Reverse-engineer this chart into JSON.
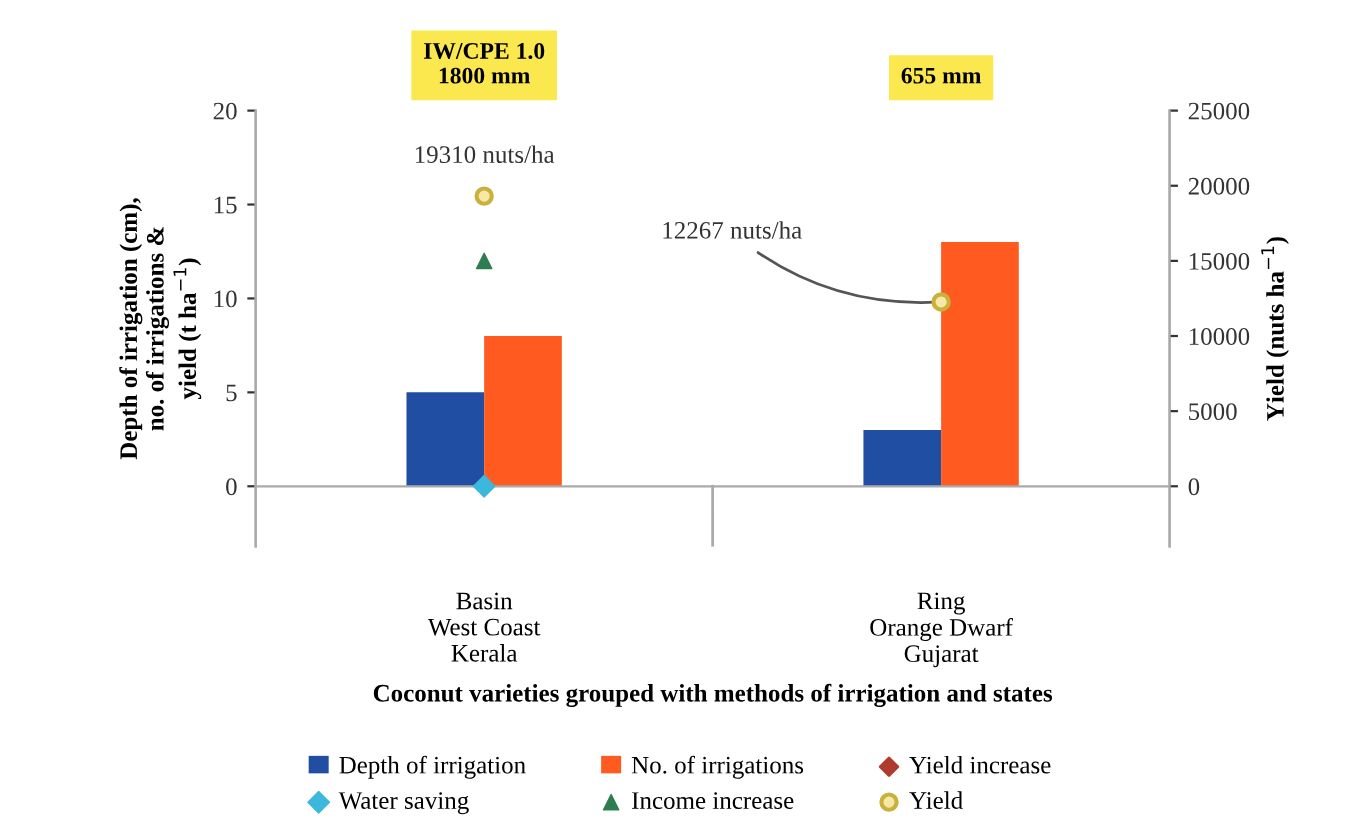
{
  "chart_data": {
    "type": "bar",
    "categories": [
      "Basin\nWest Coast\nKerala",
      "Ring\nOrange Dwarf\nGujarat"
    ],
    "xlabel": "Coconut varieties grouped with methods of irrigation and states",
    "ylabel": "Depth of irrigation (cm),\nno. of irrigations &\nyield (t ha$^{−1}$)",
    "y2label": "Yield (nuts ha$^{−1}$)",
    "ylim": [
      -3.2,
      20
    ],
    "yticks": [
      0,
      5,
      10,
      15,
      20
    ],
    "y2lim": [
      -4000,
      25000
    ],
    "y2ticks": [
      0,
      5000,
      10000,
      15000,
      20000,
      25000
    ],
    "series": [
      {
        "name": "Depth of irrigation",
        "color": "#1f4ea3",
        "values": [
          5,
          3
        ]
      },
      {
        "name": "No. of irrigations",
        "color": "#ff5a1f",
        "values": [
          8,
          13
        ]
      },
      {
        "name": "Yield increase",
        "type": "scatter",
        "marker": "diamond",
        "color": "#b03a2e",
        "values": [
          null,
          null
        ]
      },
      {
        "name": "Water saving",
        "type": "scatter",
        "marker": "diamond",
        "color": "#3cb8dc",
        "values": [
          0,
          null
        ]
      },
      {
        "name": "Income increase",
        "type": "scatter",
        "marker": "triangle",
        "color": "#2e7d4f",
        "values": [
          12,
          null
        ]
      },
      {
        "name": "Yield",
        "type": "scatter",
        "marker": "circle",
        "color": "#c9b23c",
        "axis": "y2",
        "values": [
          19310,
          12267
        ],
        "value_labels": [
          "19310 nuts/ha",
          "12267 nuts/ha"
        ]
      }
    ],
    "annotations": [
      "IW/CPE 1.0\n1800 mm",
      "655 mm"
    ],
    "legend": "bottom"
  }
}
